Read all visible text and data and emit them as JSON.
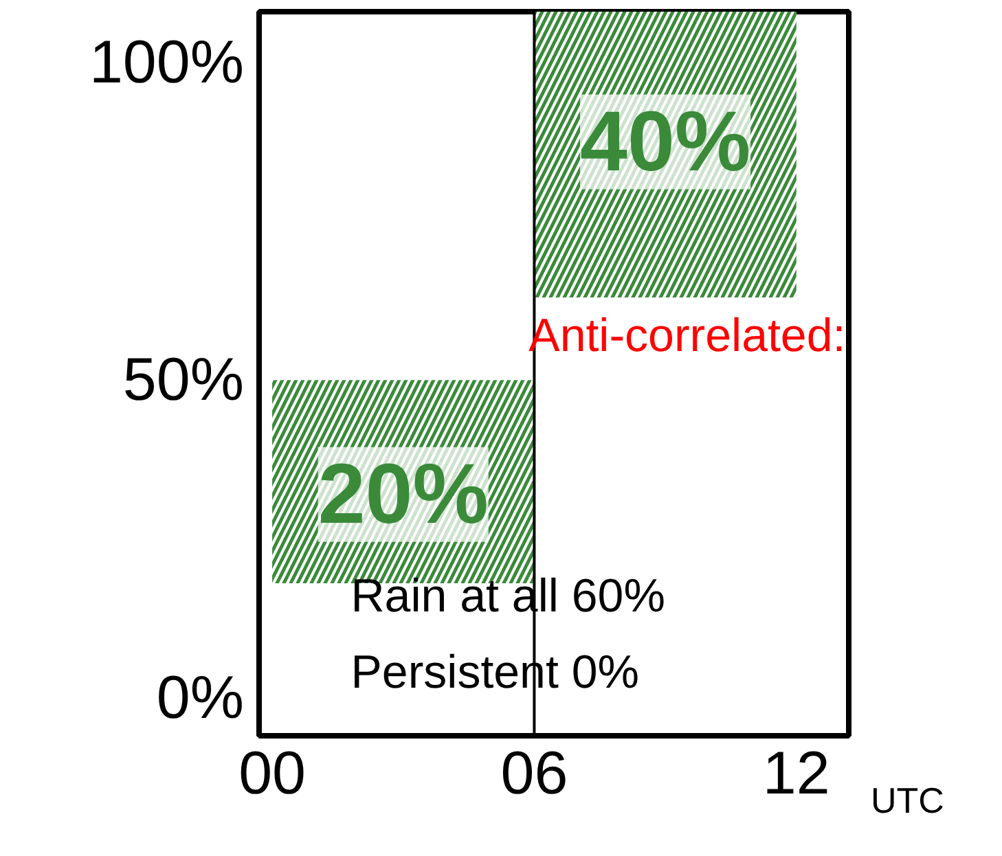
{
  "chart_data": {
    "type": "bar",
    "x": [
      3,
      9
    ],
    "base": [
      18,
      63
    ],
    "values": [
      32,
      45
    ],
    "color": "#3a8a3a",
    "xlim": [
      -0.3,
      13.2
    ],
    "ylim": [
      -6,
      108
    ],
    "xticks": [
      {
        "value": 0,
        "label": "00"
      },
      {
        "value": 6,
        "label": "06"
      },
      {
        "value": 12,
        "label": "12"
      }
    ],
    "yticks": [
      {
        "value": 0,
        "label": "0%"
      },
      {
        "value": 50,
        "label": "50%"
      },
      {
        "value": 100,
        "label": "100%"
      }
    ],
    "xlabel": "UTC",
    "grid": false,
    "ref_lines": [
      {
        "axis": "x",
        "value": 6,
        "color": "#000000"
      }
    ],
    "annotations": [
      "20%",
      "40%",
      "Anti-correlated:",
      "Rain at all 60%",
      "Persistent 0%"
    ]
  }
}
